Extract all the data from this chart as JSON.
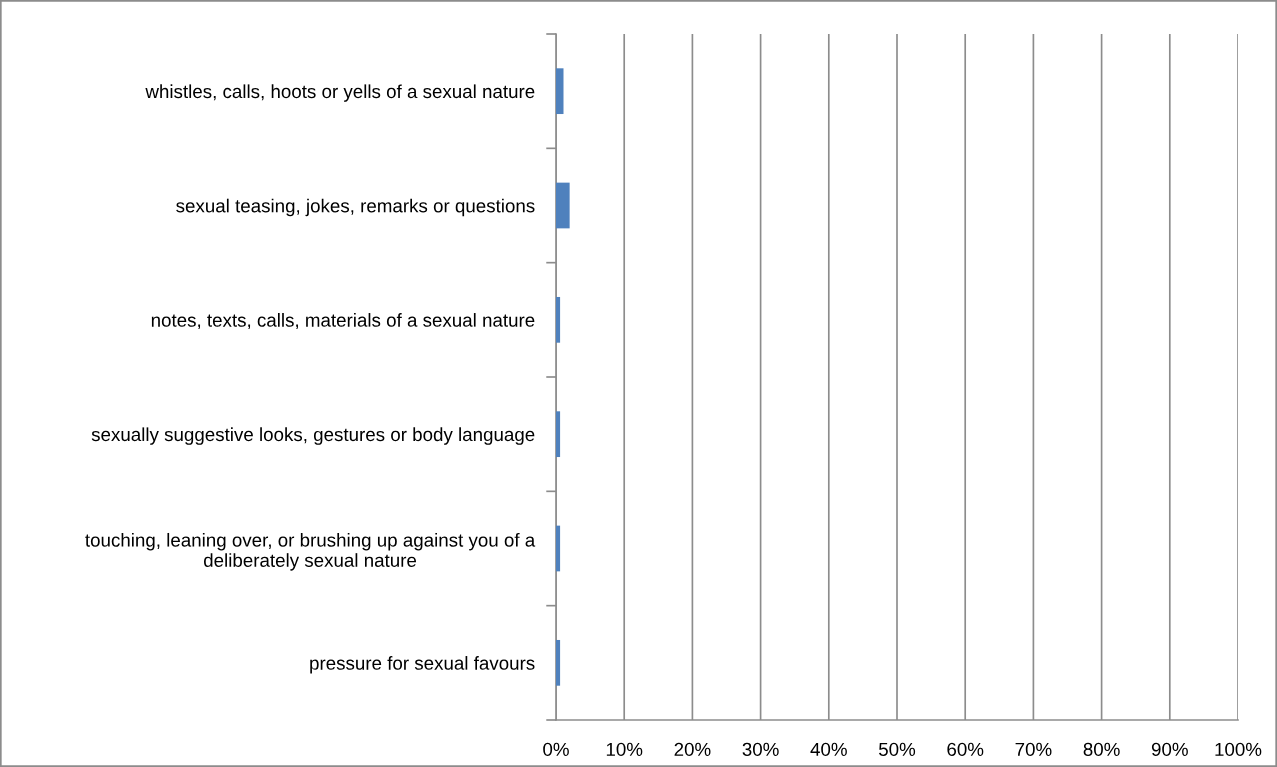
{
  "chart_data": {
    "type": "bar",
    "orientation": "horizontal",
    "categories": [
      "whistles, calls, hoots or yells of a sexual nature",
      "sexual teasing, jokes, remarks or questions",
      "notes, texts, calls, materials of a sexual nature",
      "sexually suggestive looks, gestures or body language",
      "touching, leaning over, or brushing up against you of a deliberately sexual nature",
      "pressure for sexual favours"
    ],
    "values": [
      1.1,
      2.0,
      0.6,
      0.6,
      0.6,
      0.6
    ],
    "color": "#4f81bd",
    "xlim": [
      0,
      100
    ],
    "xticks": [
      {
        "value": 0,
        "label": "0%"
      },
      {
        "value": 10,
        "label": "10%"
      },
      {
        "value": 20,
        "label": "20%"
      },
      {
        "value": 30,
        "label": "30%"
      },
      {
        "value": 40,
        "label": "40%"
      },
      {
        "value": 50,
        "label": "50%"
      },
      {
        "value": 60,
        "label": "60%"
      },
      {
        "value": 70,
        "label": "70%"
      },
      {
        "value": 80,
        "label": "80%"
      },
      {
        "value": 90,
        "label": "90%"
      },
      {
        "value": 100,
        "label": "100%"
      }
    ],
    "grid": "x"
  }
}
